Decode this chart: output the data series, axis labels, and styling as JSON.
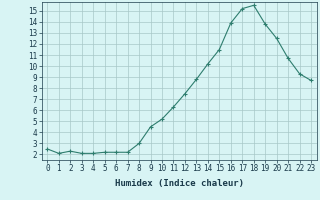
{
  "x": [
    0,
    1,
    2,
    3,
    4,
    5,
    6,
    7,
    8,
    9,
    10,
    11,
    12,
    13,
    14,
    15,
    16,
    17,
    18,
    19,
    20,
    21,
    22,
    23
  ],
  "y": [
    2.5,
    2.1,
    2.3,
    2.1,
    2.1,
    2.2,
    2.2,
    2.2,
    3.0,
    4.5,
    5.2,
    6.3,
    7.5,
    8.8,
    10.2,
    11.5,
    13.9,
    15.2,
    15.5,
    13.8,
    12.5,
    10.7,
    9.3,
    8.7
  ],
  "xlabel": "Humidex (Indice chaleur)",
  "xlim": [
    -0.5,
    23.5
  ],
  "ylim": [
    1.5,
    15.8
  ],
  "line_color": "#2e7d6e",
  "bg_color": "#d8f4f4",
  "grid_color": "#a8c8c8",
  "yticks": [
    2,
    3,
    4,
    5,
    6,
    7,
    8,
    9,
    10,
    11,
    12,
    13,
    14,
    15
  ],
  "xticks": [
    0,
    1,
    2,
    3,
    4,
    5,
    6,
    7,
    8,
    9,
    10,
    11,
    12,
    13,
    14,
    15,
    16,
    17,
    18,
    19,
    20,
    21,
    22,
    23
  ],
  "font_color": "#1a3a4a",
  "label_fontsize": 6.5,
  "tick_fontsize": 5.5
}
